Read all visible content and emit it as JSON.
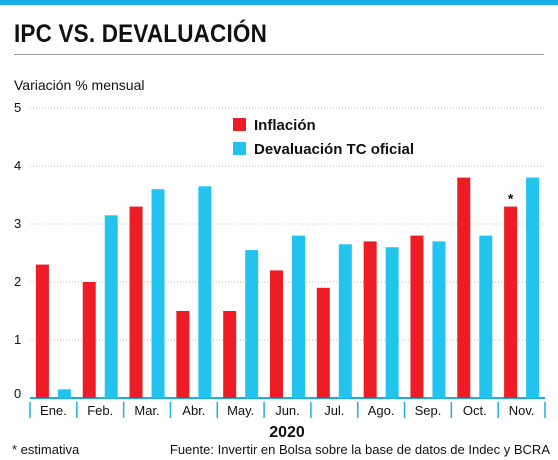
{
  "title": "IPC VS. DEVALUACIÓN",
  "colors": {
    "accent_bar": "#1aaee8",
    "inflation": "#ee1c25",
    "devaluation": "#22c4ee"
  },
  "chart_data": {
    "type": "bar",
    "ylabel": "Variación % mensual",
    "xlabel": "2020",
    "ylim": [
      0,
      5
    ],
    "yticks": [
      "0",
      "1",
      "2",
      "3",
      "4",
      "5"
    ],
    "grid": true,
    "legend_position": "top-center",
    "categories": [
      "Ene.",
      "Feb.",
      "Mar.",
      "Abr.",
      "May.",
      "Jun.",
      "Jul.",
      "Ago.",
      "Sep.",
      "Oct.",
      "Nov."
    ],
    "series": [
      {
        "name": "Inflación",
        "color": "#ee1c25",
        "values": [
          2.3,
          2.0,
          3.3,
          1.5,
          1.5,
          2.2,
          1.9,
          2.7,
          2.8,
          3.8,
          3.3
        ]
      },
      {
        "name": "Devaluación TC oficial",
        "color": "#22c4ee",
        "values": [
          0.15,
          3.15,
          3.6,
          3.65,
          2.55,
          2.8,
          2.65,
          2.6,
          2.7,
          2.8,
          3.8
        ]
      }
    ],
    "annotations": [
      {
        "category": "Nov.",
        "series": "Inflación",
        "text": "*"
      }
    ]
  },
  "footer": {
    "note": "* estimativa",
    "source": "Fuente: Invertir en Bolsa sobre la base de datos de Indec y BCRA"
  }
}
